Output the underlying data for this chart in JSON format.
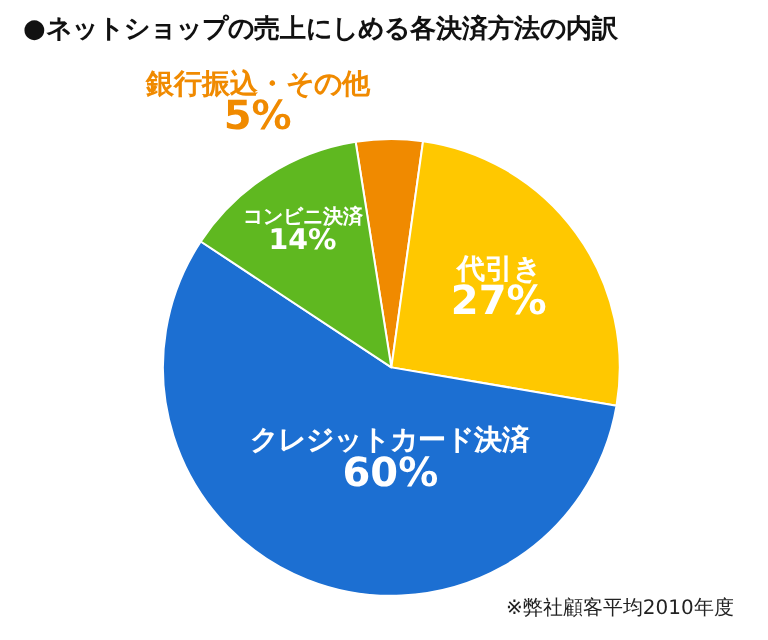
{
  "chart_data": {
    "type": "pie",
    "title": "●ネットショップの売上にしめる各決済方法の内訳",
    "categories": [
      "銀行振込・その他",
      "代引き",
      "クレジットカード決済",
      "コンビニ決済"
    ],
    "values": [
      5,
      27,
      60,
      14
    ],
    "value_labels": [
      "5%",
      "27%",
      "60%",
      "14%"
    ],
    "colors": [
      "#f08a00",
      "#ffc800",
      "#1c6fd2",
      "#5fb820"
    ],
    "legend": false,
    "annotations": [
      "※弊社顧客平均2010年度"
    ]
  }
}
